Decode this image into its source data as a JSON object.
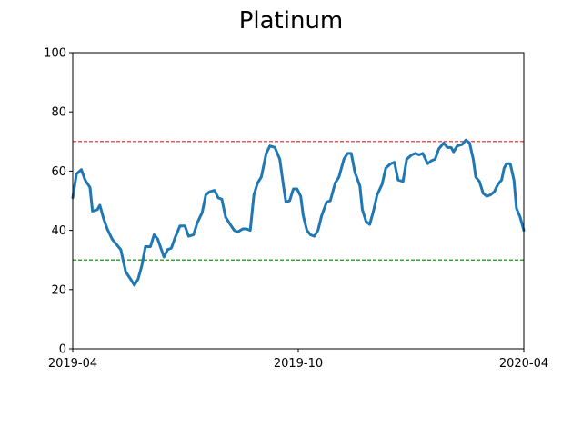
{
  "chart_data": {
    "type": "line",
    "title": "Platinum",
    "xlabel": "",
    "ylabel": "",
    "ylim": [
      0,
      100
    ],
    "xlim": [
      "2019-04-01",
      "2020-04-01"
    ],
    "y_ticks": [
      0,
      20,
      40,
      60,
      80,
      100
    ],
    "x_ticks": [
      {
        "label": "2019-04",
        "date": "2019-04-01"
      },
      {
        "label": "2019-10",
        "date": "2019-10-01"
      },
      {
        "label": "2020-04",
        "date": "2020-04-01"
      }
    ],
    "grid": false,
    "reference_lines": [
      {
        "y": 70,
        "color": "#d62728",
        "style": "dashed"
      },
      {
        "y": 30,
        "color": "#008000",
        "style": "dashed"
      }
    ],
    "series": [
      {
        "color": "#1f77b4",
        "points": [
          [
            "2019-04-01",
            51
          ],
          [
            "2019-04-04",
            59
          ],
          [
            "2019-04-08",
            60.5
          ],
          [
            "2019-04-11",
            57
          ],
          [
            "2019-04-15",
            54.5
          ],
          [
            "2019-04-17",
            46.5
          ],
          [
            "2019-04-21",
            47
          ],
          [
            "2019-04-23",
            48.5
          ],
          [
            "2019-04-26",
            44
          ],
          [
            "2019-04-29",
            40.5
          ],
          [
            "2019-05-03",
            37
          ],
          [
            "2019-05-06",
            35.5
          ],
          [
            "2019-05-10",
            33.5
          ],
          [
            "2019-05-14",
            26
          ],
          [
            "2019-05-18",
            23.5
          ],
          [
            "2019-05-21",
            21.5
          ],
          [
            "2019-05-24",
            23.5
          ],
          [
            "2019-05-27",
            28
          ],
          [
            "2019-05-30",
            34.5
          ],
          [
            "2019-06-03",
            34.5
          ],
          [
            "2019-06-06",
            38.5
          ],
          [
            "2019-06-09",
            37
          ],
          [
            "2019-06-14",
            31
          ],
          [
            "2019-06-17",
            33.5
          ],
          [
            "2019-06-20",
            34
          ],
          [
            "2019-06-23",
            37.5
          ],
          [
            "2019-06-27",
            41.5
          ],
          [
            "2019-07-01",
            41.5
          ],
          [
            "2019-07-04",
            38
          ],
          [
            "2019-07-08",
            38.5
          ],
          [
            "2019-07-11",
            42.5
          ],
          [
            "2019-07-15",
            46
          ],
          [
            "2019-07-18",
            52
          ],
          [
            "2019-07-21",
            53
          ],
          [
            "2019-07-25",
            53.5
          ],
          [
            "2019-07-28",
            51
          ],
          [
            "2019-07-31",
            50.5
          ],
          [
            "2019-08-03",
            44.5
          ],
          [
            "2019-08-06",
            42.5
          ],
          [
            "2019-08-10",
            40
          ],
          [
            "2019-08-13",
            39.5
          ],
          [
            "2019-08-17",
            40.5
          ],
          [
            "2019-08-20",
            40.5
          ],
          [
            "2019-08-23",
            40
          ],
          [
            "2019-08-26",
            52
          ],
          [
            "2019-08-29",
            56
          ],
          [
            "2019-09-01",
            58
          ],
          [
            "2019-09-05",
            66
          ],
          [
            "2019-09-08",
            68.5
          ],
          [
            "2019-09-12",
            68
          ],
          [
            "2019-09-16",
            64
          ],
          [
            "2019-09-19",
            55
          ],
          [
            "2019-09-21",
            49.5
          ],
          [
            "2019-09-24",
            50
          ],
          [
            "2019-09-27",
            54
          ],
          [
            "2019-09-30",
            54
          ],
          [
            "2019-10-03",
            51.5
          ],
          [
            "2019-10-05",
            45
          ],
          [
            "2019-10-08",
            40
          ],
          [
            "2019-10-11",
            38.5
          ],
          [
            "2019-10-14",
            38
          ],
          [
            "2019-10-17",
            40
          ],
          [
            "2019-10-20",
            45
          ],
          [
            "2019-10-24",
            49.5
          ],
          [
            "2019-10-27",
            50
          ],
          [
            "2019-10-31",
            56
          ],
          [
            "2019-11-03",
            58
          ],
          [
            "2019-11-07",
            64
          ],
          [
            "2019-11-10",
            66
          ],
          [
            "2019-11-13",
            66
          ],
          [
            "2019-11-16",
            59.5
          ],
          [
            "2019-11-20",
            55
          ],
          [
            "2019-11-22",
            47
          ],
          [
            "2019-11-25",
            43
          ],
          [
            "2019-11-28",
            42
          ],
          [
            "2019-12-01",
            46.5
          ],
          [
            "2019-12-04",
            52
          ],
          [
            "2019-12-08",
            55.5
          ],
          [
            "2019-12-11",
            61
          ],
          [
            "2019-12-15",
            62.5
          ],
          [
            "2019-12-18",
            63
          ],
          [
            "2019-12-21",
            57
          ],
          [
            "2019-12-25",
            56.5
          ],
          [
            "2019-12-28",
            64
          ],
          [
            "2020-01-01",
            65.5
          ],
          [
            "2020-01-04",
            66
          ],
          [
            "2020-01-07",
            65.5
          ],
          [
            "2020-01-10",
            66
          ],
          [
            "2020-01-14",
            62.5
          ],
          [
            "2020-01-17",
            63.5
          ],
          [
            "2020-01-20",
            64
          ],
          [
            "2020-01-23",
            67.5
          ],
          [
            "2020-01-27",
            69.5
          ],
          [
            "2020-01-30",
            68
          ],
          [
            "2020-02-02",
            68
          ],
          [
            "2020-02-04",
            66.5
          ],
          [
            "2020-02-07",
            68.5
          ],
          [
            "2020-02-11",
            69
          ],
          [
            "2020-02-14",
            70.5
          ],
          [
            "2020-02-17",
            69.5
          ],
          [
            "2020-02-20",
            64
          ],
          [
            "2020-02-22",
            58
          ],
          [
            "2020-02-25",
            56.5
          ],
          [
            "2020-02-28",
            52.5
          ],
          [
            "2020-03-02",
            51.5
          ],
          [
            "2020-03-05",
            52
          ],
          [
            "2020-03-08",
            53
          ],
          [
            "2020-03-11",
            55.5
          ],
          [
            "2020-03-14",
            57
          ],
          [
            "2020-03-16",
            61
          ],
          [
            "2020-03-18",
            62.5
          ],
          [
            "2020-03-21",
            62.5
          ],
          [
            "2020-03-24",
            57
          ],
          [
            "2020-03-26",
            47.5
          ],
          [
            "2020-03-29",
            44.5
          ],
          [
            "2020-04-01",
            40
          ]
        ]
      }
    ]
  }
}
